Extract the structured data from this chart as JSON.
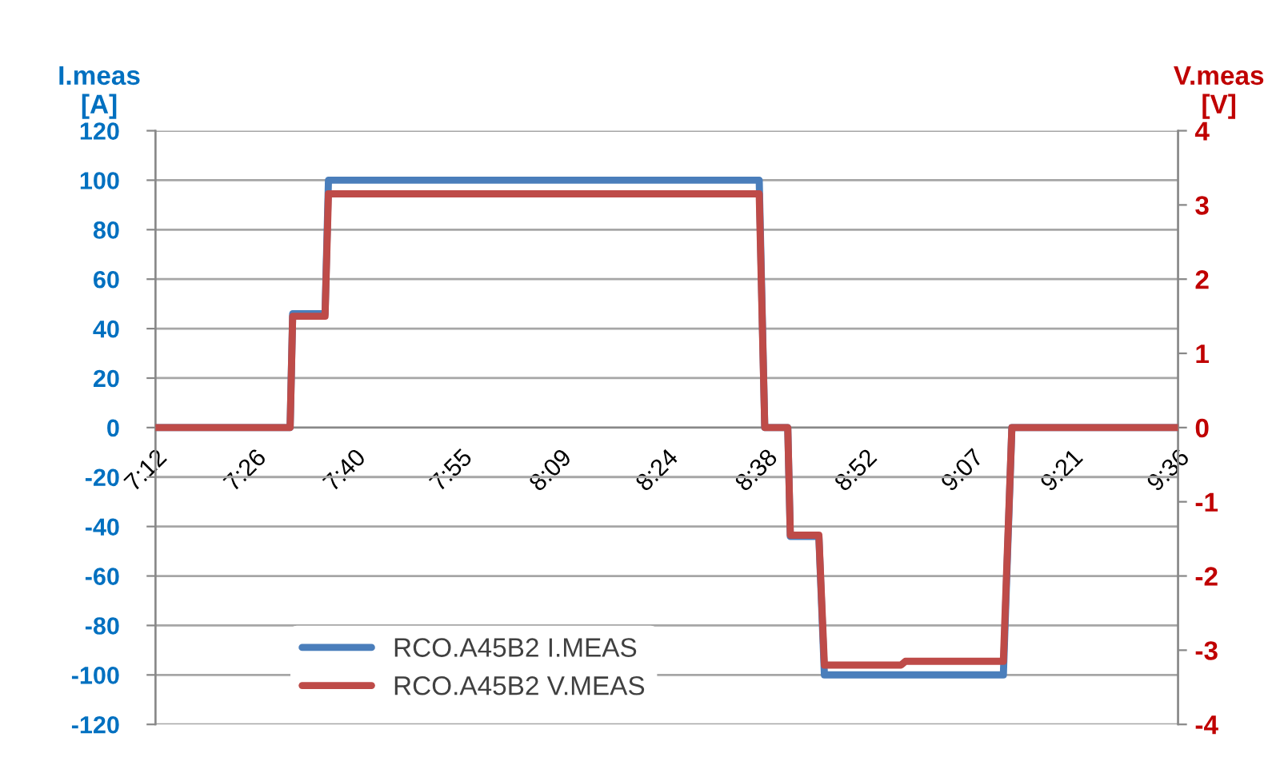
{
  "chart_data": {
    "type": "line",
    "ylabel": "I.meas\n[A]",
    "y2label": "V.meas\n[V]",
    "xlim": [
      7.2,
      9.6
    ],
    "xticks": [
      {
        "value": 7.2,
        "label": "7:12"
      },
      {
        "value": 7.4333,
        "label": "7:26"
      },
      {
        "value": 7.6667,
        "label": "7:40"
      },
      {
        "value": 7.9167,
        "label": "7:55"
      },
      {
        "value": 8.15,
        "label": "8:09"
      },
      {
        "value": 8.4,
        "label": "8:24"
      },
      {
        "value": 8.6333,
        "label": "8:38"
      },
      {
        "value": 8.8667,
        "label": "8:52"
      },
      {
        "value": 9.1167,
        "label": "9:07"
      },
      {
        "value": 9.35,
        "label": "9:21"
      },
      {
        "value": 9.6,
        "label": "9:36"
      }
    ],
    "ylim": [
      -120,
      120
    ],
    "yticks": [
      -120,
      -100,
      -80,
      -60,
      -40,
      -20,
      0,
      20,
      40,
      60,
      80,
      100,
      120
    ],
    "y2lim": [
      -4,
      4
    ],
    "y2ticks": [
      -4,
      -3,
      -2,
      -1,
      0,
      1,
      2,
      3,
      4
    ],
    "grid": "y",
    "legend": "bottom left",
    "marker": "none",
    "line_style": "solid",
    "series": [
      {
        "name": "RCO.A45B2 I.MEAS",
        "color": "#4a7ebb",
        "x": [
          7.2,
          7.516,
          7.522,
          7.598,
          7.606,
          8.617,
          8.63,
          8.684,
          8.69,
          8.757,
          8.77,
          9.19,
          9.21,
          9.6
        ],
        "values": [
          0,
          0,
          46,
          46,
          100,
          100,
          0,
          0,
          -44,
          -44,
          -100,
          -100,
          0,
          0
        ]
      },
      {
        "name": "RCO.A45B2 V.MEAS",
        "color": "#be4b48",
        "axis": "y2",
        "x": [
          7.2,
          7.516,
          7.522,
          7.598,
          7.606,
          8.617,
          8.63,
          8.684,
          8.69,
          8.757,
          8.77,
          8.95,
          8.96,
          9.19,
          9.21,
          9.6
        ],
        "values": [
          0,
          0,
          1.5,
          1.5,
          3.15,
          3.15,
          0,
          0,
          -1.45,
          -1.45,
          -3.2,
          -3.2,
          -3.15,
          -3.15,
          0,
          0
        ]
      }
    ]
  }
}
